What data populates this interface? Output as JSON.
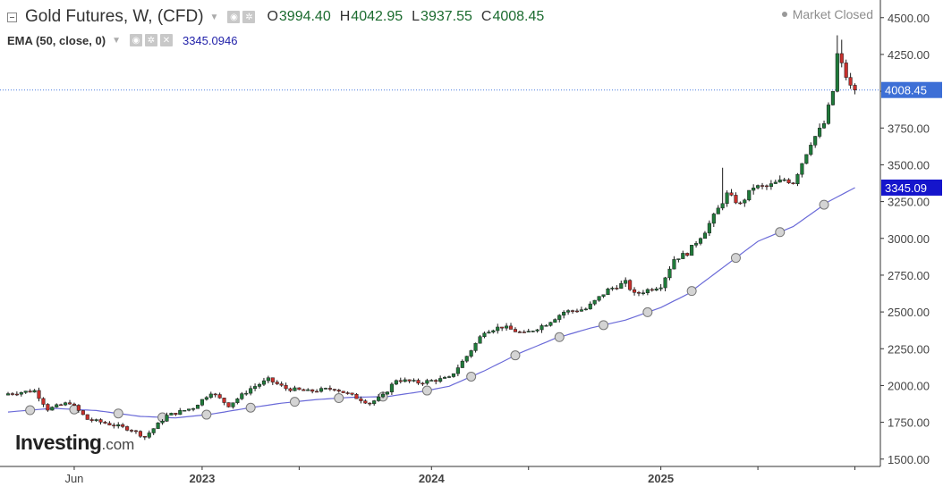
{
  "header": {
    "title": "Gold Futures, W, (CFD)",
    "open_label": "O",
    "open_value": "3994.40",
    "high_label": "H",
    "high_value": "4042.95",
    "low_label": "L",
    "low_value": "3937.55",
    "close_label": "C",
    "close_value": "4008.45",
    "market_status": "Market Closed"
  },
  "indicator": {
    "title": "EMA (50, close, 0)",
    "value": "3345.0946"
  },
  "branding": {
    "logo_text": "Investing",
    "logo_domain": ".com"
  },
  "colors": {
    "up_candle": "#1f7a3a",
    "down_candle": "#c8302c",
    "ema_line": "#6a6ad8",
    "price_label_bg": "#3d6fd6",
    "ema_label_bg": "#1515cc",
    "text_green": "#1b6b2f"
  },
  "icons": [
    "collapse-icon",
    "chevron-down-icon",
    "visibility-icon",
    "settings-icon",
    "close-icon",
    "market-status-dot-icon"
  ],
  "chart_data": {
    "type": "candlestick",
    "ylim": [
      1450,
      4620
    ],
    "y_ticks": [
      1500,
      1750,
      2000,
      2250,
      2500,
      2750,
      3000,
      3250,
      3500,
      3750,
      4000,
      4250,
      4500
    ],
    "y_tick_labels": [
      "1500.00",
      "1750.00",
      "2000.00",
      "2250.00",
      "2500.00",
      "2750.00",
      "3000.00",
      "3250.00",
      "3500.00",
      "3750.00",
      "4000.00",
      "4250.00",
      "4500.00"
    ],
    "x_labels": [
      {
        "text": "Jun",
        "week": 15
      },
      {
        "text": "2023",
        "week": 44
      },
      {
        "text": "2024",
        "week": 96
      },
      {
        "text": "2025",
        "week": 148
      }
    ],
    "x_ticks": [
      15,
      44,
      66,
      96,
      118,
      148,
      170,
      192
    ],
    "last_price": 4008.45,
    "last_price_label": "4008.45",
    "ema_last": 3345.09,
    "ema_last_label": "3345.09",
    "anchors": [
      [
        0,
        1945
      ],
      [
        6,
        1965
      ],
      [
        9,
        1840
      ],
      [
        14,
        1885
      ],
      [
        18,
        1770
      ],
      [
        22,
        1745
      ],
      [
        28,
        1700
      ],
      [
        31,
        1650
      ],
      [
        36,
        1795
      ],
      [
        42,
        1850
      ],
      [
        46,
        1955
      ],
      [
        50,
        1865
      ],
      [
        55,
        1980
      ],
      [
        59,
        2040
      ],
      [
        63,
        1980
      ],
      [
        68,
        1960
      ],
      [
        74,
        1980
      ],
      [
        78,
        1930
      ],
      [
        82,
        1880
      ],
      [
        85,
        1930
      ],
      [
        88,
        2040
      ],
      [
        93,
        2020
      ],
      [
        100,
        2050
      ],
      [
        104,
        2200
      ],
      [
        108,
        2370
      ],
      [
        112,
        2400
      ],
      [
        117,
        2350
      ],
      [
        122,
        2420
      ],
      [
        126,
        2500
      ],
      [
        131,
        2520
      ],
      [
        136,
        2650
      ],
      [
        140,
        2700
      ],
      [
        142,
        2620
      ],
      [
        144,
        2640
      ],
      [
        148,
        2680
      ],
      [
        151,
        2860
      ],
      [
        154,
        2900
      ],
      [
        158,
        3050
      ],
      [
        163,
        3300
      ],
      [
        166,
        3230
      ],
      [
        169,
        3350
      ],
      [
        172,
        3350
      ],
      [
        176,
        3400
      ],
      [
        178,
        3380
      ],
      [
        182,
        3650
      ],
      [
        185,
        3780
      ],
      [
        187,
        4000
      ],
      [
        188,
        4250
      ],
      [
        189,
        4180
      ],
      [
        190,
        4100
      ],
      [
        191,
        4030
      ],
      [
        192,
        4008
      ]
    ],
    "ema_points": [
      [
        0,
        1820
      ],
      [
        10,
        1845
      ],
      [
        20,
        1830
      ],
      [
        30,
        1790
      ],
      [
        38,
        1780
      ],
      [
        46,
        1805
      ],
      [
        54,
        1845
      ],
      [
        62,
        1880
      ],
      [
        70,
        1905
      ],
      [
        78,
        1920
      ],
      [
        86,
        1925
      ],
      [
        94,
        1960
      ],
      [
        100,
        1995
      ],
      [
        108,
        2100
      ],
      [
        116,
        2220
      ],
      [
        124,
        2320
      ],
      [
        132,
        2390
      ],
      [
        140,
        2445
      ],
      [
        148,
        2530
      ],
      [
        154,
        2620
      ],
      [
        162,
        2800
      ],
      [
        170,
        2980
      ],
      [
        178,
        3080
      ],
      [
        186,
        3250
      ],
      [
        192,
        3345
      ]
    ],
    "ema_markers": [
      5,
      15,
      25,
      35,
      45,
      55,
      65,
      75,
      85,
      95,
      105,
      115,
      125,
      135,
      145,
      155,
      165,
      175,
      185
    ]
  }
}
